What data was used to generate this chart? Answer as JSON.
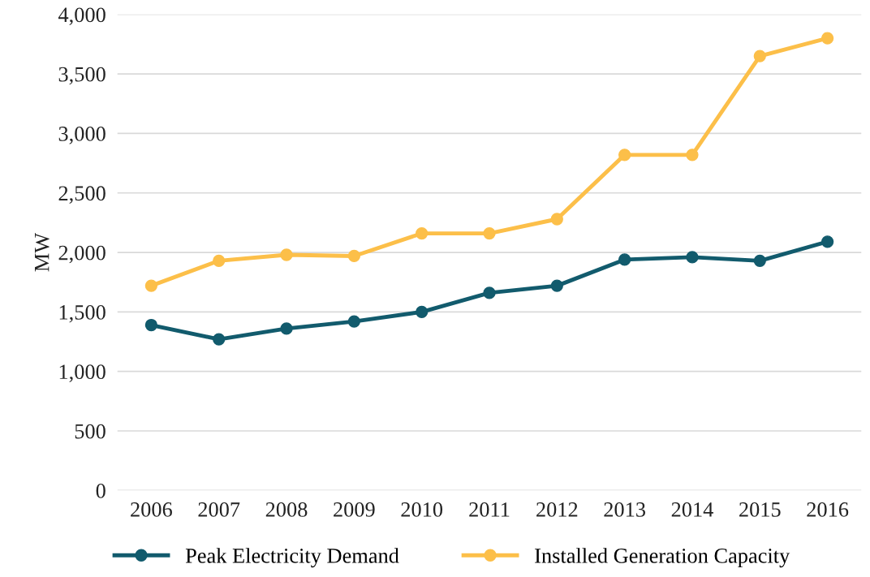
{
  "chart_data": {
    "type": "line",
    "ylabel": "MW",
    "categories": [
      "2006",
      "2007",
      "2008",
      "2009",
      "2010",
      "2011",
      "2012",
      "2013",
      "2014",
      "2015",
      "2016"
    ],
    "series": [
      {
        "name": "Peak Electricity Demand",
        "color": "#125b6d",
        "values": [
          1390,
          1270,
          1360,
          1420,
          1500,
          1660,
          1720,
          1940,
          1960,
          1930,
          2090
        ]
      },
      {
        "name": "Installed Generation Capacity",
        "color": "#fcbf49",
        "values": [
          1720,
          1930,
          1980,
          1970,
          2160,
          2160,
          2280,
          2820,
          2820,
          3650,
          3800
        ]
      }
    ],
    "ylim": [
      0,
      4000
    ],
    "yticks": [
      {
        "value": 0,
        "label": "0"
      },
      {
        "value": 500,
        "label": "500"
      },
      {
        "value": 1000,
        "label": "1,000"
      },
      {
        "value": 1500,
        "label": "1,500"
      },
      {
        "value": 2000,
        "label": "2,000"
      },
      {
        "value": 2500,
        "label": "2,500"
      },
      {
        "value": 3000,
        "label": "3,000"
      },
      {
        "value": 3500,
        "label": "3,500"
      },
      {
        "value": 4000,
        "label": "4,000"
      }
    ],
    "grid": "y",
    "legend": "bottom",
    "marker": "circle",
    "line_style": "solid"
  }
}
